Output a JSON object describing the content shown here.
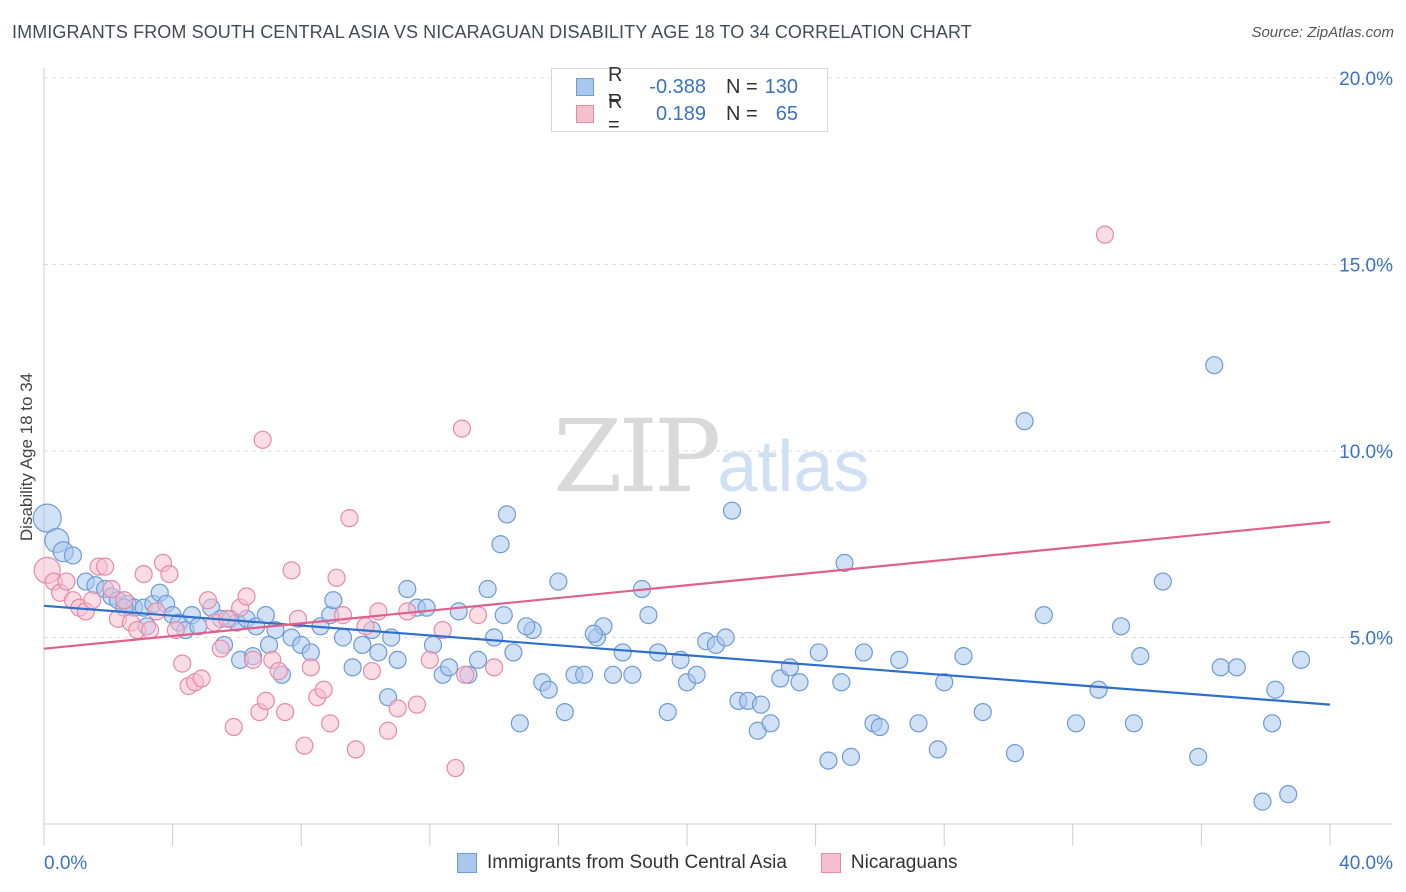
{
  "title": "IMMIGRANTS FROM SOUTH CENTRAL ASIA VS NICARAGUAN DISABILITY AGE 18 TO 34 CORRELATION CHART",
  "source": "Source: ZipAtlas.com",
  "watermark": {
    "zip": "ZIP",
    "atlas": "atlas"
  },
  "legend": {
    "rows": [
      {
        "r_label": "R =",
        "r_value": "-0.388",
        "n_label": "N =",
        "n_value": "130"
      },
      {
        "r_label": "R =",
        "r_value": "0.189",
        "n_label": "N =",
        "n_value": "65"
      }
    ]
  },
  "colors": {
    "blue_fill": "#a9c7ec",
    "blue_stroke": "#6f9bd6",
    "blue_line": "#2f6fcc",
    "pink_fill": "#f5bfd0",
    "pink_stroke": "#e78aa8",
    "pink_line": "#e0608c",
    "tick_text": "#3b72c4",
    "grid": "#dddddd"
  },
  "chart_data": {
    "type": "scatter",
    "title": "IMMIGRANTS FROM SOUTH CENTRAL ASIA VS NICARAGUAN DISABILITY AGE 18 TO 34 CORRELATION CHART",
    "xlabel": "",
    "ylabel": "Disability Age 18 to 34",
    "xlim": [
      0,
      40
    ],
    "ylim": [
      0,
      20
    ],
    "x_tick_labels": [
      "0.0%",
      "40.0%"
    ],
    "y_ticks": [
      5,
      10,
      15,
      20
    ],
    "y_tick_labels": [
      "5.0%",
      "10.0%",
      "15.0%",
      "20.0%"
    ],
    "grid": true,
    "legend_position": "top-center",
    "series": [
      {
        "name": "Immigrants from South Central Asia",
        "color": "#a9c7ec",
        "trend": {
          "x0": 0,
          "y0": 5.85,
          "x1": 40,
          "y1": 3.2
        },
        "points": [
          [
            0.1,
            8.2
          ],
          [
            0.4,
            7.6
          ],
          [
            0.6,
            7.3
          ],
          [
            0.9,
            7.2
          ],
          [
            1.3,
            6.5
          ],
          [
            1.6,
            6.4
          ],
          [
            1.9,
            6.3
          ],
          [
            2.1,
            6.1
          ],
          [
            2.3,
            6.0
          ],
          [
            2.6,
            5.9
          ],
          [
            2.8,
            5.8
          ],
          [
            3.1,
            5.8
          ],
          [
            3.4,
            5.9
          ],
          [
            3.6,
            6.2
          ],
          [
            3.8,
            5.9
          ],
          [
            4.0,
            5.6
          ],
          [
            4.2,
            5.4
          ],
          [
            4.4,
            5.2
          ],
          [
            4.6,
            5.6
          ],
          [
            4.8,
            5.3
          ],
          [
            5.2,
            5.8
          ],
          [
            5.5,
            5.5
          ],
          [
            5.8,
            5.5
          ],
          [
            6.0,
            5.4
          ],
          [
            6.3,
            5.5
          ],
          [
            6.6,
            5.3
          ],
          [
            6.9,
            5.6
          ],
          [
            7.2,
            5.2
          ],
          [
            2.5,
            5.8
          ],
          [
            3.2,
            5.3
          ],
          [
            5.6,
            4.8
          ],
          [
            6.1,
            4.4
          ],
          [
            6.5,
            4.5
          ],
          [
            7.0,
            4.8
          ],
          [
            7.4,
            4.0
          ],
          [
            7.7,
            5.0
          ],
          [
            8.0,
            4.8
          ],
          [
            8.3,
            4.6
          ],
          [
            8.6,
            5.3
          ],
          [
            8.9,
            5.6
          ],
          [
            9.0,
            6.0
          ],
          [
            9.3,
            5.0
          ],
          [
            9.6,
            4.2
          ],
          [
            9.9,
            4.8
          ],
          [
            10.2,
            5.2
          ],
          [
            10.4,
            4.6
          ],
          [
            10.7,
            3.4
          ],
          [
            11.0,
            4.4
          ],
          [
            11.3,
            6.3
          ],
          [
            11.6,
            5.8
          ],
          [
            11.9,
            5.8
          ],
          [
            12.1,
            4.8
          ],
          [
            12.4,
            4.0
          ],
          [
            12.6,
            4.2
          ],
          [
            12.9,
            5.7
          ],
          [
            13.2,
            4.0
          ],
          [
            13.5,
            4.4
          ],
          [
            13.8,
            6.3
          ],
          [
            14.0,
            5.0
          ],
          [
            14.3,
            5.6
          ],
          [
            14.6,
            4.6
          ],
          [
            14.8,
            2.7
          ],
          [
            14.2,
            7.5
          ],
          [
            14.4,
            8.3
          ],
          [
            15.2,
            5.2
          ],
          [
            15.5,
            3.8
          ],
          [
            15.7,
            3.6
          ],
          [
            16.0,
            6.5
          ],
          [
            16.2,
            3.0
          ],
          [
            16.5,
            4.0
          ],
          [
            16.8,
            4.0
          ],
          [
            17.2,
            5.0
          ],
          [
            17.4,
            5.3
          ],
          [
            17.7,
            4.0
          ],
          [
            18.0,
            4.6
          ],
          [
            18.3,
            4.0
          ],
          [
            18.6,
            6.3
          ],
          [
            18.8,
            5.6
          ],
          [
            19.1,
            4.6
          ],
          [
            19.4,
            3.0
          ],
          [
            19.8,
            4.4
          ],
          [
            20.0,
            3.8
          ],
          [
            20.3,
            4.0
          ],
          [
            20.6,
            4.9
          ],
          [
            20.9,
            4.8
          ],
          [
            21.2,
            5.0
          ],
          [
            21.6,
            3.3
          ],
          [
            21.9,
            3.3
          ],
          [
            22.2,
            2.5
          ],
          [
            22.3,
            3.2
          ],
          [
            22.6,
            2.7
          ],
          [
            22.9,
            3.9
          ],
          [
            23.2,
            4.2
          ],
          [
            23.5,
            3.8
          ],
          [
            24.1,
            4.6
          ],
          [
            24.4,
            1.7
          ],
          [
            24.8,
            3.8
          ],
          [
            25.1,
            1.8
          ],
          [
            25.5,
            4.6
          ],
          [
            25.8,
            2.7
          ],
          [
            26.0,
            2.6
          ],
          [
            26.6,
            4.4
          ],
          [
            27.2,
            2.7
          ],
          [
            27.8,
            2.0
          ],
          [
            28.0,
            3.8
          ],
          [
            28.6,
            4.5
          ],
          [
            29.2,
            3.0
          ],
          [
            30.2,
            1.9
          ],
          [
            31.1,
            5.6
          ],
          [
            32.1,
            2.7
          ],
          [
            32.8,
            3.6
          ],
          [
            33.5,
            5.3
          ],
          [
            33.9,
            2.7
          ],
          [
            34.8,
            6.5
          ],
          [
            35.9,
            1.8
          ],
          [
            36.6,
            4.2
          ],
          [
            37.1,
            4.2
          ],
          [
            38.2,
            2.7
          ],
          [
            38.3,
            3.6
          ],
          [
            38.7,
            0.8
          ],
          [
            39.1,
            4.4
          ],
          [
            36.4,
            12.3
          ],
          [
            30.5,
            10.8
          ],
          [
            21.4,
            8.4
          ],
          [
            24.9,
            7.0
          ],
          [
            17.1,
            5.1
          ],
          [
            10.8,
            5.0
          ],
          [
            15.0,
            5.3
          ],
          [
            37.9,
            0.6
          ],
          [
            34.1,
            4.5
          ]
        ]
      },
      {
        "name": "Nicaraguans",
        "color": "#f5bfd0",
        "trend": {
          "x0": 0,
          "y0": 4.7,
          "x1": 40,
          "y1": 8.1
        },
        "points": [
          [
            0.1,
            6.8
          ],
          [
            0.3,
            6.5
          ],
          [
            0.5,
            6.2
          ],
          [
            0.7,
            6.5
          ],
          [
            0.9,
            6.0
          ],
          [
            1.1,
            5.8
          ],
          [
            1.3,
            5.7
          ],
          [
            1.5,
            6.0
          ],
          [
            1.7,
            6.9
          ],
          [
            1.9,
            6.9
          ],
          [
            2.1,
            6.3
          ],
          [
            2.3,
            5.5
          ],
          [
            2.5,
            6.0
          ],
          [
            2.7,
            5.4
          ],
          [
            2.9,
            5.2
          ],
          [
            3.1,
            6.7
          ],
          [
            3.3,
            5.2
          ],
          [
            3.5,
            5.7
          ],
          [
            3.7,
            7.0
          ],
          [
            3.9,
            6.7
          ],
          [
            4.1,
            5.2
          ],
          [
            4.3,
            4.3
          ],
          [
            4.5,
            3.7
          ],
          [
            4.7,
            3.8
          ],
          [
            4.9,
            3.9
          ],
          [
            5.1,
            6.0
          ],
          [
            5.3,
            5.4
          ],
          [
            5.5,
            4.7
          ],
          [
            5.7,
            5.5
          ],
          [
            5.9,
            2.6
          ],
          [
            6.1,
            5.8
          ],
          [
            6.3,
            6.1
          ],
          [
            6.5,
            4.4
          ],
          [
            6.7,
            3.0
          ],
          [
            6.9,
            3.3
          ],
          [
            7.1,
            4.4
          ],
          [
            7.3,
            4.1
          ],
          [
            7.5,
            3.0
          ],
          [
            7.7,
            6.8
          ],
          [
            7.9,
            5.5
          ],
          [
            8.1,
            2.1
          ],
          [
            8.3,
            4.2
          ],
          [
            8.5,
            3.4
          ],
          [
            8.7,
            3.6
          ],
          [
            8.9,
            2.7
          ],
          [
            9.1,
            6.6
          ],
          [
            9.3,
            5.6
          ],
          [
            9.5,
            8.2
          ],
          [
            9.7,
            2.0
          ],
          [
            10.0,
            5.3
          ],
          [
            10.2,
            4.1
          ],
          [
            10.4,
            5.7
          ],
          [
            10.7,
            2.5
          ],
          [
            11.0,
            3.1
          ],
          [
            11.3,
            5.7
          ],
          [
            11.6,
            3.2
          ],
          [
            12.0,
            4.4
          ],
          [
            12.4,
            5.2
          ],
          [
            12.8,
            1.5
          ],
          [
            13.1,
            4.0
          ],
          [
            13.5,
            5.6
          ],
          [
            14.0,
            4.2
          ],
          [
            6.8,
            10.3
          ],
          [
            13.0,
            10.6
          ],
          [
            33.0,
            15.8
          ]
        ]
      }
    ]
  },
  "bottom_legend": [
    "Immigrants from South Central Asia",
    "Nicaraguans"
  ]
}
